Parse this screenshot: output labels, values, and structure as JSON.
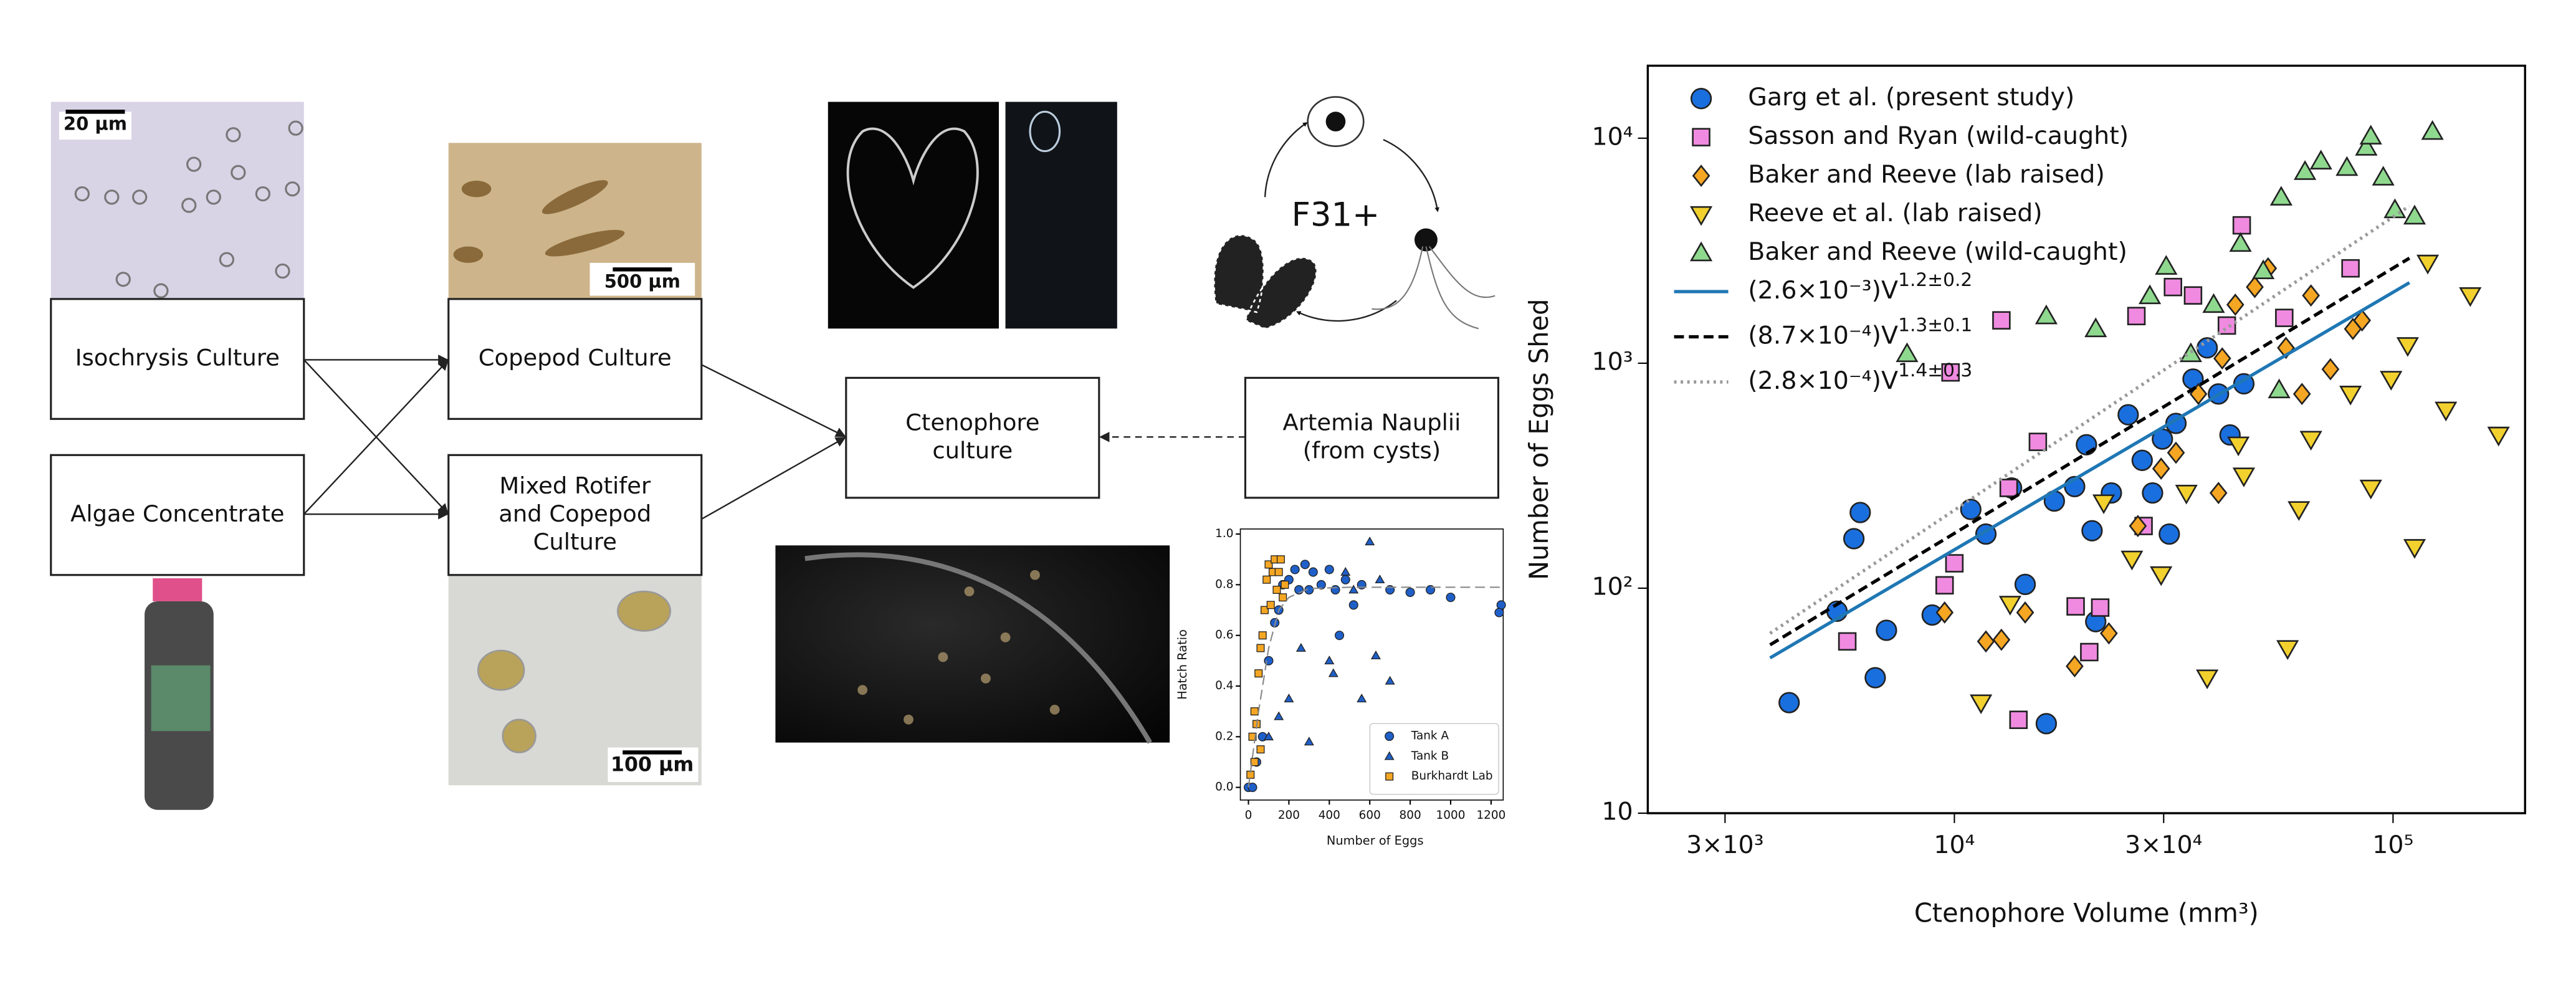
{
  "diagram": {
    "nodes": [
      {
        "label": [
          "Isochrysis Culture"
        ]
      },
      {
        "label": [
          "Algae Concentrate"
        ]
      },
      {
        "label": [
          "Copepod Culture"
        ]
      },
      {
        "label": [
          "Mixed Rotifer",
          "and Copepod",
          "Culture"
        ]
      },
      {
        "label": [
          "Ctenophore",
          "culture"
        ]
      },
      {
        "label": [
          "Artemia Nauplii",
          "(from cysts)"
        ]
      }
    ],
    "cycle_label": "F31+",
    "scale_bars": [
      "20 µm",
      "500 µm",
      "100 µm"
    ]
  },
  "chart_data": [
    {
      "type": "scatter",
      "xlabel": "Number of Eggs",
      "ylabel": "Hatch Ratio",
      "xlim": [
        -40,
        1260
      ],
      "ylim": [
        -0.05,
        1.02
      ],
      "xticks": [
        0,
        200,
        400,
        600,
        800,
        1000,
        1200
      ],
      "yticks": [
        {
          "value": 0,
          "label": "0.0"
        },
        {
          "value": 0.2,
          "label": "0.2"
        },
        {
          "value": 0.4,
          "label": "0.4"
        },
        {
          "value": 0.6,
          "label": "0.6"
        },
        {
          "value": 0.8,
          "label": "0.8"
        },
        {
          "value": 1,
          "label": "1.0"
        }
      ],
      "legend": "lower right",
      "series": [
        {
          "name": "Tank A",
          "color": "#1f5fc8",
          "marker": "o",
          "x": [
            0,
            20,
            40,
            70,
            100,
            130,
            150,
            170,
            200,
            230,
            250,
            280,
            300,
            320,
            360,
            400,
            430,
            450,
            480,
            520,
            560,
            700,
            800,
            900,
            1000,
            1250,
            1240
          ],
          "values": [
            0,
            0,
            0.1,
            0.2,
            0.5,
            0.65,
            0.7,
            0.8,
            0.82,
            0.86,
            0.78,
            0.88,
            0.78,
            0.85,
            0.8,
            0.86,
            0.78,
            0.6,
            0.82,
            0.72,
            0.8,
            0.78,
            0.77,
            0.78,
            0.75,
            0.72,
            0.69
          ]
        },
        {
          "name": "Tank B",
          "color": "#1f5fc8",
          "marker": "^",
          "x": [
            100,
            150,
            200,
            260,
            300,
            400,
            420,
            480,
            520,
            600,
            630,
            650,
            700,
            560
          ],
          "values": [
            0.2,
            0.28,
            0.35,
            0.55,
            0.18,
            0.5,
            0.45,
            0.85,
            0.78,
            0.97,
            0.52,
            0.82,
            0.42,
            0.35
          ]
        },
        {
          "name": "Burkhardt Lab",
          "color": "#f5a623",
          "marker": "s",
          "x": [
            10,
            20,
            30,
            40,
            50,
            60,
            70,
            80,
            90,
            100,
            110,
            120,
            130,
            140,
            150,
            160,
            170,
            180,
            60,
            30
          ],
          "values": [
            0.05,
            0.2,
            0.3,
            0.25,
            0.45,
            0.55,
            0.6,
            0.7,
            0.82,
            0.88,
            0.72,
            0.85,
            0.9,
            0.78,
            0.85,
            0.9,
            0.75,
            0.8,
            0.15,
            0.1
          ]
        },
        {
          "type": "line",
          "color": "#888888",
          "linestyle": "dashed",
          "x": [
            0,
            50,
            100,
            150,
            200,
            300,
            500,
            800,
            1250
          ],
          "values": [
            0,
            0.3,
            0.55,
            0.7,
            0.75,
            0.785,
            0.79,
            0.79,
            0.79
          ]
        }
      ]
    },
    {
      "type": "scatter",
      "xlabel": "Ctenophore Volume (mm³)",
      "ylabel": "Number of Eggs Shed",
      "xscale": "log",
      "yscale": "log",
      "xlim": [
        2000,
        200000
      ],
      "ylim": [
        10,
        21000
      ],
      "xticks": [
        {
          "value": 3000,
          "label": "3×10³"
        },
        {
          "value": 10000,
          "label": "10⁴"
        },
        {
          "value": 30000,
          "label": "3×10⁴"
        },
        {
          "value": 100000,
          "label": "10⁵"
        }
      ],
      "yticks": [
        10,
        {
          "value": 100,
          "label": "10²"
        },
        {
          "value": 1000,
          "label": "10³"
        },
        {
          "value": 10000,
          "label": "10⁴"
        }
      ],
      "legend": "upper left",
      "series": [
        {
          "name": "Garg et al. (present study)",
          "color": "#1a6fdf",
          "marker": "o",
          "x": [
            4200,
            5400,
            5900,
            6100,
            6600,
            7000,
            8900,
            10900,
            11800,
            13500,
            14500,
            16200,
            16900,
            18800,
            20000,
            20600,
            21000,
            22800,
            24900,
            26800,
            28300,
            29800,
            30900,
            32000,
            35000,
            37700,
            40000,
            42500,
            45700
          ],
          "values": [
            31,
            79,
            166,
            217,
            40,
            65,
            76,
            224,
            174,
            279,
            104,
            25,
            244,
            283,
            434,
            180,
            71,
            265,
            590,
            370,
            265,
            460,
            174,
            540,
            850,
            1170,
            730,
            480,
            810
          ]
        },
        {
          "name": "Sasson and Ryan (wild-caught)",
          "color": "#f08ae0",
          "marker": "s",
          "x": [
            5700,
            9500,
            10000,
            13300,
            15500,
            14000,
            18900,
            20300,
            21500,
            26000,
            27000,
            31500,
            35000,
            41800,
            45200,
            56500,
            80000,
            9800,
            12800
          ],
          "values": [
            58,
            103,
            129,
            279,
            447,
            26,
            83,
            52,
            82,
            1620,
            189,
            2180,
            2000,
            1470,
            4100,
            1590,
            2640,
            910,
            1550
          ]
        },
        {
          "name": "Baker and Reeve (lab raised)",
          "color": "#f5a623",
          "marker": "D",
          "x": [
            9500,
            11800,
            12800,
            14500,
            18800,
            22500,
            26200,
            29600,
            32000,
            36000,
            40800,
            43700,
            48400,
            51900,
            57000,
            62000,
            65000,
            72000,
            81000,
            85000,
            40000
          ],
          "values": [
            78,
            58,
            59,
            78,
            45,
            63,
            189,
            340,
            400,
            730,
            1050,
            1820,
            2180,
            2640,
            1170,
            730,
            2000,
            940,
            1420,
            1550,
            265
          ]
        },
        {
          "name": "Reeve et al. (lab raised)",
          "color": "#f2d12e",
          "marker": "v",
          "x": [
            11500,
            13400,
            21900,
            25400,
            29600,
            33800,
            37700,
            44400,
            57500,
            61000,
            65000,
            80000,
            89000,
            99000,
            108000,
            120000,
            132000,
            150000,
            174000,
            112000,
            45700
          ],
          "values": [
            31,
            85,
            240,
            135,
            115,
            265,
            40,
            434,
            54,
            224,
            460,
            730,
            279,
            850,
            1200,
            2790,
            620,
            2000,
            480,
            152,
            316
          ]
        },
        {
          "name": "Baker and Reeve (wild-caught)",
          "color": "#8fd98f",
          "marker": "^",
          "x": [
            16200,
            21000,
            27900,
            30400,
            34600,
            39000,
            44900,
            50600,
            55600,
            63000,
            68500,
            78500,
            86900,
            95000,
            101000,
            112000,
            123000,
            89000,
            55000,
            7800
          ],
          "values": [
            1620,
            1420,
            1990,
            2690,
            1100,
            1820,
            3400,
            2570,
            5460,
            7100,
            7900,
            7400,
            9100,
            6700,
            4800,
            4500,
            10700,
            10200,
            760,
            1100
          ]
        },
        {
          "type": "line",
          "name": "(2.6×10⁻³)V",
          "exponent": "1.2±0.2",
          "color": "#1f77b4",
          "linestyle": "solid",
          "x": [
            3800,
            109000
          ],
          "values": [
            49,
            2280
          ]
        },
        {
          "type": "line",
          "name": "(8.7×10⁻⁴)V",
          "exponent": "1.3±0.1",
          "color": "#000000",
          "linestyle": "dashed",
          "x": [
            3800,
            109000
          ],
          "values": [
            56,
            2930
          ]
        },
        {
          "type": "line",
          "name": "(2.8×10⁻⁴)V",
          "exponent": "1.4±0.3",
          "color": "#999999",
          "linestyle": "dotted",
          "x": [
            3800,
            109000
          ],
          "values": [
            63,
            5000
          ]
        }
      ]
    }
  ]
}
